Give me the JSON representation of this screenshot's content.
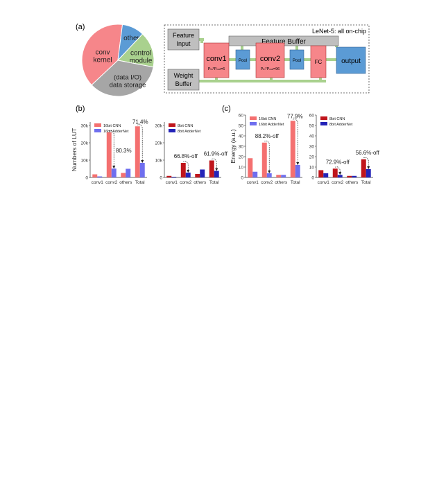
{
  "panel_labels": {
    "a": "(a)",
    "b": "(b)",
    "c": "(c)"
  },
  "pie": {
    "slices": [
      {
        "label": "conv\nkernel",
        "value": 0.39,
        "color": "#f6868a"
      },
      {
        "label": "others",
        "value": 0.1,
        "color": "#5b9bd5"
      },
      {
        "label": "control\nmodule",
        "value": 0.16,
        "color": "#a9d18e"
      },
      {
        "label": "(data I/O)\ndata storage",
        "value": 0.35,
        "color": "#a6a6a6"
      }
    ]
  },
  "diagram": {
    "title": "LeNet-5: all on-chip",
    "feature_input": "Feature\nInput",
    "weight_buffer": "Weight\nBuffer",
    "feature_buffer": "Feature Buffer",
    "conv1": "conv1",
    "conv1_sub": "P",
    "conv1_sub2": "in",
    "conv1_sub3": "*P",
    "conv1_sub4": "out",
    "conv1_sub5": "=6",
    "conv2": "conv2",
    "conv2_sub5": "=96",
    "pool": "Pool",
    "fc": "FC",
    "output": "output",
    "colors": {
      "gray": "#bfbfbf",
      "pink": "#f6868a",
      "blue": "#5b9bd5",
      "green": "#a9d18e"
    }
  },
  "chart_data": [
    {
      "type": "bar",
      "panel": "b-left",
      "ylabel": "Numbers of LUT",
      "categories": [
        "conv1",
        "conv2",
        "others",
        "Total"
      ],
      "ylim": [
        0,
        32000
      ],
      "yticks": [
        "0",
        "10k",
        "20k",
        "30k"
      ],
      "series": [
        {
          "name": "16bit CNN",
          "values": [
            1800,
            26000,
            2600,
            29500
          ],
          "color": "#f47070"
        },
        {
          "name": "16bit AdderNet",
          "values": [
            600,
            5100,
            5000,
            8400
          ],
          "color": "#6f6fef"
        }
      ],
      "annotations": [
        "80.3%",
        "71.4%"
      ]
    },
    {
      "type": "bar",
      "panel": "b-right",
      "categories": [
        "conv1",
        "conv2",
        "others",
        "Total"
      ],
      "ylim": [
        0,
        32000
      ],
      "yticks": [
        "0",
        "10k",
        "20k",
        "30k"
      ],
      "series": [
        {
          "name": "8bit CNN",
          "values": [
            900,
            8400,
            2000,
            9800
          ],
          "color": "#c0161c"
        },
        {
          "name": "8bit AdderNet",
          "values": [
            400,
            2800,
            4600,
            3800
          ],
          "color": "#2424b8"
        }
      ],
      "annotations": [
        "66.8%-off",
        "61.9%-off"
      ]
    },
    {
      "type": "bar",
      "panel": "c-left",
      "ylabel": "Energy (a.u.)",
      "categories": [
        "conv1",
        "conv2",
        "others",
        "Total"
      ],
      "ylim": [
        0,
        60
      ],
      "yticks": [
        "0",
        "10",
        "20",
        "30",
        "40",
        "50",
        "60"
      ],
      "series": [
        {
          "name": "16bit CNN",
          "values": [
            18.5,
            33.5,
            2.5,
            54.5
          ],
          "color": "#f47070"
        },
        {
          "name": "16bit AdderNet",
          "values": [
            5.5,
            4.0,
            2.5,
            12.0
          ],
          "color": "#6f6fef"
        }
      ],
      "annotations": [
        "88.2%-off",
        "77.9%"
      ]
    },
    {
      "type": "bar",
      "panel": "c-right",
      "categories": [
        "conv1",
        "conv2",
        "others",
        "Total"
      ],
      "ylim": [
        0,
        60
      ],
      "yticks": [
        "0",
        "10",
        "20",
        "30",
        "40",
        "50",
        "60"
      ],
      "series": [
        {
          "name": "8bit CNN",
          "values": [
            7.0,
            8.5,
            1.5,
            17.5
          ],
          "color": "#c0161c"
        },
        {
          "name": "8bit AdderNet",
          "values": [
            4.0,
            2.5,
            1.5,
            8.0
          ],
          "color": "#2424b8"
        }
      ],
      "annotations": [
        "72.9%-off",
        "56.6%-off"
      ]
    }
  ]
}
